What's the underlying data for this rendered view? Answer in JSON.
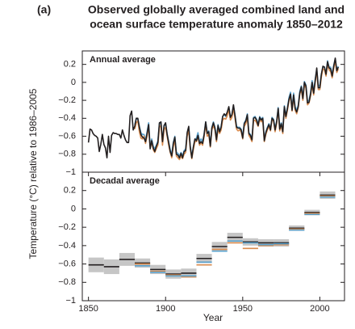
{
  "chart_data": [
    {
      "type": "line",
      "panel_label": "(a)",
      "title": [
        "Observed globally averaged combined land and",
        "ocean surface temperature anomaly 1850–2012"
      ],
      "subtitle": "Annual average",
      "ylabel": "Temperature (°C) relative to 1986–2005",
      "xlim": [
        1846,
        2016
      ],
      "ylim": [
        -1,
        0.35
      ],
      "yticks": [
        0.2,
        0,
        {
          "value": -0.2,
          "label": "−0.2"
        },
        {
          "value": -0.4,
          "label": "−0.4"
        },
        {
          "value": -0.6,
          "label": "−0.6"
        },
        {
          "value": -0.8,
          "label": "−0.8"
        },
        {
          "value": -1,
          "label": "−1"
        }
      ],
      "x": [
        1850,
        1851,
        1852,
        1853,
        1854,
        1855,
        1856,
        1857,
        1858,
        1859,
        1860,
        1861,
        1862,
        1863,
        1864,
        1865,
        1866,
        1867,
        1868,
        1869,
        1870,
        1871,
        1872,
        1873,
        1874,
        1875,
        1876,
        1877,
        1878,
        1879,
        1880,
        1881,
        1882,
        1883,
        1884,
        1885,
        1886,
        1887,
        1888,
        1889,
        1890,
        1891,
        1892,
        1893,
        1894,
        1895,
        1896,
        1897,
        1898,
        1899,
        1900,
        1901,
        1902,
        1903,
        1904,
        1905,
        1906,
        1907,
        1908,
        1909,
        1910,
        1911,
        1912,
        1913,
        1914,
        1915,
        1916,
        1917,
        1918,
        1919,
        1920,
        1921,
        1922,
        1923,
        1924,
        1925,
        1926,
        1927,
        1928,
        1929,
        1930,
        1931,
        1932,
        1933,
        1934,
        1935,
        1936,
        1937,
        1938,
        1939,
        1940,
        1941,
        1942,
        1943,
        1944,
        1945,
        1946,
        1947,
        1948,
        1949,
        1950,
        1951,
        1952,
        1953,
        1954,
        1955,
        1956,
        1957,
        1958,
        1959,
        1960,
        1961,
        1962,
        1963,
        1964,
        1965,
        1966,
        1967,
        1968,
        1969,
        1970,
        1971,
        1972,
        1973,
        1974,
        1975,
        1976,
        1977,
        1978,
        1979,
        1980,
        1981,
        1982,
        1983,
        1984,
        1985,
        1986,
        1987,
        1988,
        1989,
        1990,
        1991,
        1992,
        1993,
        1994,
        1995,
        1996,
        1997,
        1998,
        1999,
        2000,
        2001,
        2002,
        2003,
        2004,
        2005,
        2006,
        2007,
        2008,
        2009,
        2010,
        2011,
        2012
      ],
      "series": [
        {
          "color": "#5ba3cf",
          "values": [
            null,
            null,
            null,
            null,
            null,
            null,
            null,
            null,
            null,
            null,
            null,
            null,
            null,
            null,
            null,
            null,
            null,
            null,
            null,
            null,
            null,
            null,
            null,
            null,
            null,
            null,
            null,
            null,
            null,
            null,
            -0.47,
            -0.4,
            -0.41,
            -0.49,
            -0.56,
            -0.58,
            -0.58,
            -0.64,
            -0.55,
            -0.45,
            -0.71,
            -0.63,
            -0.71,
            -0.74,
            -0.7,
            -0.65,
            -0.46,
            -0.45,
            -0.65,
            -0.49,
            -0.46,
            -0.57,
            -0.66,
            -0.75,
            -0.8,
            -0.67,
            -0.6,
            -0.78,
            -0.79,
            -0.82,
            -0.78,
            -0.82,
            -0.76,
            -0.74,
            -0.57,
            -0.5,
            -0.71,
            -0.82,
            -0.72,
            -0.64,
            -0.62,
            -0.56,
            -0.66,
            -0.63,
            -0.66,
            -0.57,
            -0.44,
            -0.56,
            -0.54,
            -0.7,
            -0.5,
            -0.44,
            -0.5,
            -0.62,
            -0.47,
            -0.54,
            -0.49,
            -0.38,
            -0.36,
            -0.38,
            -0.34,
            -0.28,
            -0.38,
            -0.36,
            -0.26,
            -0.36,
            -0.49,
            -0.5,
            -0.5,
            -0.52,
            -0.6,
            -0.45,
            -0.42,
            -0.35,
            -0.56,
            -0.58,
            -0.63,
            -0.39,
            -0.38,
            -0.41,
            -0.46,
            -0.38,
            -0.41,
            -0.39,
            -0.63,
            -0.55,
            -0.5,
            -0.46,
            -0.52,
            -0.39,
            -0.41,
            -0.51,
            -0.43,
            -0.28,
            -0.5,
            -0.45,
            -0.53,
            -0.26,
            -0.37,
            -0.28,
            -0.17,
            -0.11,
            -0.29,
            -0.12,
            -0.27,
            -0.31,
            -0.25,
            -0.1,
            -0.04,
            -0.16,
            0.01,
            -0.03,
            -0.21,
            -0.2,
            -0.11,
            0.02,
            -0.1,
            0.04,
            0.14,
            -0.04,
            -0.03,
            0.09,
            0.17,
            0.17,
            0.1,
            0.24,
            0.17,
            0.17,
            0.09,
            0.19,
            0.26,
            0.14,
            0.18
          ]
        },
        {
          "color": "#d98b4e",
          "values": [
            null,
            null,
            null,
            null,
            null,
            null,
            null,
            null,
            null,
            null,
            null,
            null,
            null,
            null,
            null,
            null,
            null,
            null,
            null,
            null,
            null,
            null,
            null,
            null,
            null,
            null,
            null,
            null,
            null,
            null,
            -0.52,
            -0.45,
            -0.43,
            -0.55,
            -0.62,
            -0.63,
            -0.6,
            -0.68,
            -0.6,
            -0.5,
            -0.72,
            -0.67,
            -0.75,
            -0.78,
            -0.74,
            -0.7,
            -0.5,
            -0.48,
            -0.7,
            -0.53,
            -0.5,
            -0.6,
            -0.7,
            -0.78,
            -0.84,
            -0.72,
            -0.64,
            -0.82,
            -0.84,
            -0.86,
            -0.82,
            -0.85,
            -0.8,
            -0.78,
            -0.6,
            -0.53,
            -0.74,
            -0.85,
            -0.75,
            -0.66,
            -0.66,
            -0.6,
            -0.7,
            -0.67,
            -0.7,
            -0.6,
            -0.47,
            -0.6,
            -0.58,
            -0.72,
            -0.53,
            -0.48,
            -0.53,
            -0.66,
            -0.52,
            -0.57,
            -0.53,
            -0.42,
            -0.4,
            -0.41,
            -0.37,
            -0.3,
            -0.42,
            -0.39,
            -0.29,
            -0.4,
            -0.52,
            -0.54,
            -0.53,
            -0.55,
            -0.63,
            -0.49,
            -0.46,
            -0.39,
            -0.59,
            -0.62,
            -0.66,
            -0.43,
            -0.42,
            -0.45,
            -0.49,
            -0.41,
            -0.44,
            -0.42,
            -0.66,
            -0.58,
            -0.53,
            -0.49,
            -0.54,
            -0.42,
            -0.43,
            -0.55,
            -0.46,
            -0.31,
            -0.54,
            -0.48,
            -0.57,
            -0.29,
            -0.4,
            -0.31,
            -0.21,
            -0.15,
            -0.32,
            -0.16,
            -0.31,
            -0.35,
            -0.28,
            -0.13,
            -0.08,
            -0.2,
            -0.03,
            -0.06,
            -0.25,
            -0.23,
            -0.15,
            -0.03,
            -0.14,
            0.0,
            0.13,
            -0.08,
            -0.08,
            0.06,
            0.15,
            0.14,
            0.07,
            0.2,
            0.14,
            0.12,
            0.05,
            0.15,
            0.24,
            0.11,
            0.15
          ]
        },
        {
          "color": "#231f20",
          "values": [
            -0.67,
            -0.52,
            -0.53,
            -0.57,
            -0.59,
            -0.6,
            -0.62,
            -0.77,
            -0.69,
            -0.58,
            -0.69,
            -0.73,
            -0.84,
            -0.6,
            -0.78,
            -0.59,
            -0.56,
            -0.57,
            -0.57,
            -0.58,
            -0.58,
            -0.62,
            -0.53,
            -0.59,
            -0.64,
            -0.67,
            -0.67,
            -0.37,
            -0.32,
            -0.53,
            -0.49,
            -0.4,
            -0.4,
            -0.5,
            -0.58,
            -0.61,
            -0.62,
            -0.66,
            -0.57,
            -0.47,
            -0.74,
            -0.65,
            -0.73,
            -0.77,
            -0.71,
            -0.67,
            -0.45,
            -0.44,
            -0.66,
            -0.48,
            -0.45,
            -0.58,
            -0.67,
            -0.77,
            -0.82,
            -0.68,
            -0.61,
            -0.8,
            -0.81,
            -0.84,
            -0.79,
            -0.84,
            -0.77,
            -0.76,
            -0.56,
            -0.49,
            -0.72,
            -0.84,
            -0.72,
            -0.63,
            -0.65,
            -0.59,
            -0.68,
            -0.66,
            -0.68,
            -0.58,
            -0.44,
            -0.57,
            -0.55,
            -0.71,
            -0.51,
            -0.45,
            -0.51,
            -0.64,
            -0.48,
            -0.55,
            -0.5,
            -0.38,
            -0.35,
            -0.37,
            -0.33,
            -0.27,
            -0.39,
            -0.36,
            -0.25,
            -0.37,
            -0.5,
            -0.51,
            -0.51,
            -0.53,
            -0.62,
            -0.46,
            -0.43,
            -0.36,
            -0.57,
            -0.59,
            -0.64,
            -0.4,
            -0.39,
            -0.42,
            -0.48,
            -0.39,
            -0.42,
            -0.4,
            -0.65,
            -0.56,
            -0.51,
            -0.47,
            -0.53,
            -0.4,
            -0.42,
            -0.53,
            -0.44,
            -0.29,
            -0.52,
            -0.46,
            -0.55,
            -0.27,
            -0.38,
            -0.29,
            -0.19,
            -0.13,
            -0.31,
            -0.14,
            -0.29,
            -0.33,
            -0.27,
            -0.12,
            -0.05,
            -0.18,
            0.0,
            -0.04,
            -0.23,
            -0.22,
            -0.13,
            0.0,
            -0.12,
            0.02,
            0.16,
            -0.06,
            -0.06,
            0.09,
            0.18,
            0.17,
            0.09,
            0.23,
            0.16,
            0.15,
            0.07,
            0.18,
            0.27,
            0.13,
            0.17
          ]
        }
      ]
    },
    {
      "type": "box",
      "subtitle": "Decadal average",
      "xlabel": "Year",
      "xlim": [
        1846,
        2016
      ],
      "ylim": [
        -1,
        0.4
      ],
      "xticks": [
        1850,
        1900,
        1950,
        2000
      ],
      "yticks": [
        0.2,
        0,
        {
          "value": -0.2,
          "label": "−0.2"
        },
        {
          "value": -0.4,
          "label": "−0.4"
        },
        {
          "value": -0.6,
          "label": "−0.6"
        },
        {
          "value": -0.8,
          "label": "−0.8"
        },
        {
          "value": -1,
          "label": "−1"
        }
      ],
      "x": [
        1850,
        1860,
        1870,
        1880,
        1890,
        1900,
        1910,
        1920,
        1930,
        1940,
        1950,
        1960,
        1970,
        1980,
        1990,
        2000
      ],
      "box_color": "#c6c6c6",
      "series": [
        {
          "color": "#231f20",
          "values": [
            -0.61,
            -0.63,
            -0.55,
            -0.59,
            -0.66,
            -0.71,
            -0.7,
            -0.54,
            -0.41,
            -0.31,
            -0.36,
            -0.37,
            -0.37,
            -0.21,
            -0.04,
            0.15
          ],
          "errors": [
            0.08,
            0.08,
            0.07,
            0.05,
            0.05,
            0.05,
            0.05,
            0.05,
            0.05,
            0.05,
            0.04,
            0.04,
            0.04,
            0.03,
            0.03,
            0.04
          ]
        },
        {
          "color": "#d98b4e",
          "values": [
            null,
            null,
            null,
            -0.6,
            -0.68,
            -0.72,
            -0.74,
            -0.61,
            -0.44,
            -0.37,
            -0.43,
            -0.4,
            -0.39,
            -0.22,
            -0.05,
            0.14
          ]
        },
        {
          "color": "#5ba3cf",
          "values": [
            null,
            null,
            null,
            -0.62,
            -0.69,
            -0.73,
            -0.73,
            -0.58,
            -0.46,
            -0.35,
            -0.37,
            -0.39,
            -0.38,
            -0.23,
            -0.06,
            0.13
          ]
        }
      ]
    }
  ]
}
